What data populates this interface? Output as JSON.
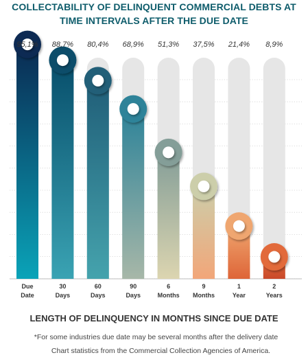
{
  "title_lines": [
    "COLLECTABILITY OF DELINQUENT COMMERCIAL DEBTS AT",
    "TIME INTERVALS AFTER THE DUE DATE"
  ],
  "xlabel": "LENGTH OF DELINQUENCY IN MONTHS SINCE DUE DATE",
  "footnotes": [
    "*For some industries due date may be several months after the delivery date",
    "Chart statistics from the Commercial Collection Agencies of America."
  ],
  "chart_data": {
    "type": "bar",
    "title": "COLLECTABILITY OF DELINQUENT COMMERCIAL DEBTS AT TIME INTERVALS AFTER THE DUE DATE",
    "xlabel": "LENGTH OF DELINQUENCY IN MONTHS SINCE DUE DATE",
    "ylabel": "",
    "ylim": [
      0,
      100
    ],
    "grid": true,
    "categories": [
      [
        "Due",
        "Date"
      ],
      [
        "30",
        "Days"
      ],
      [
        "60",
        "Days"
      ],
      [
        "90",
        "Days"
      ],
      [
        "6",
        "Months"
      ],
      [
        "9",
        "Months"
      ],
      [
        "1",
        "Year"
      ],
      [
        "2",
        "Years"
      ]
    ],
    "values": [
      95.1,
      88.7,
      80.4,
      68.9,
      51.3,
      37.5,
      21.4,
      8.9
    ],
    "value_labels": [
      "95,1%",
      "88,7%",
      "80,4%",
      "68,9%",
      "51,3%",
      "37,5%",
      "21,4%",
      "8,9%"
    ],
    "colors": [
      [
        "#0a2a52",
        "#0aa3b8"
      ],
      [
        "#074e6b",
        "#3aa3b3"
      ],
      [
        "#205e78",
        "#45a3ad"
      ],
      [
        "#2d8399",
        "#a7b7a8"
      ],
      [
        "#849e98",
        "#dcd5b0"
      ],
      [
        "#ccceaa",
        "#f2a679"
      ],
      [
        "#efa66f",
        "#de6538"
      ],
      [
        "#e26a3a",
        "#c9492a"
      ]
    ],
    "track_color": "#e6e6e6",
    "grid_color": "#d0d0d0"
  }
}
